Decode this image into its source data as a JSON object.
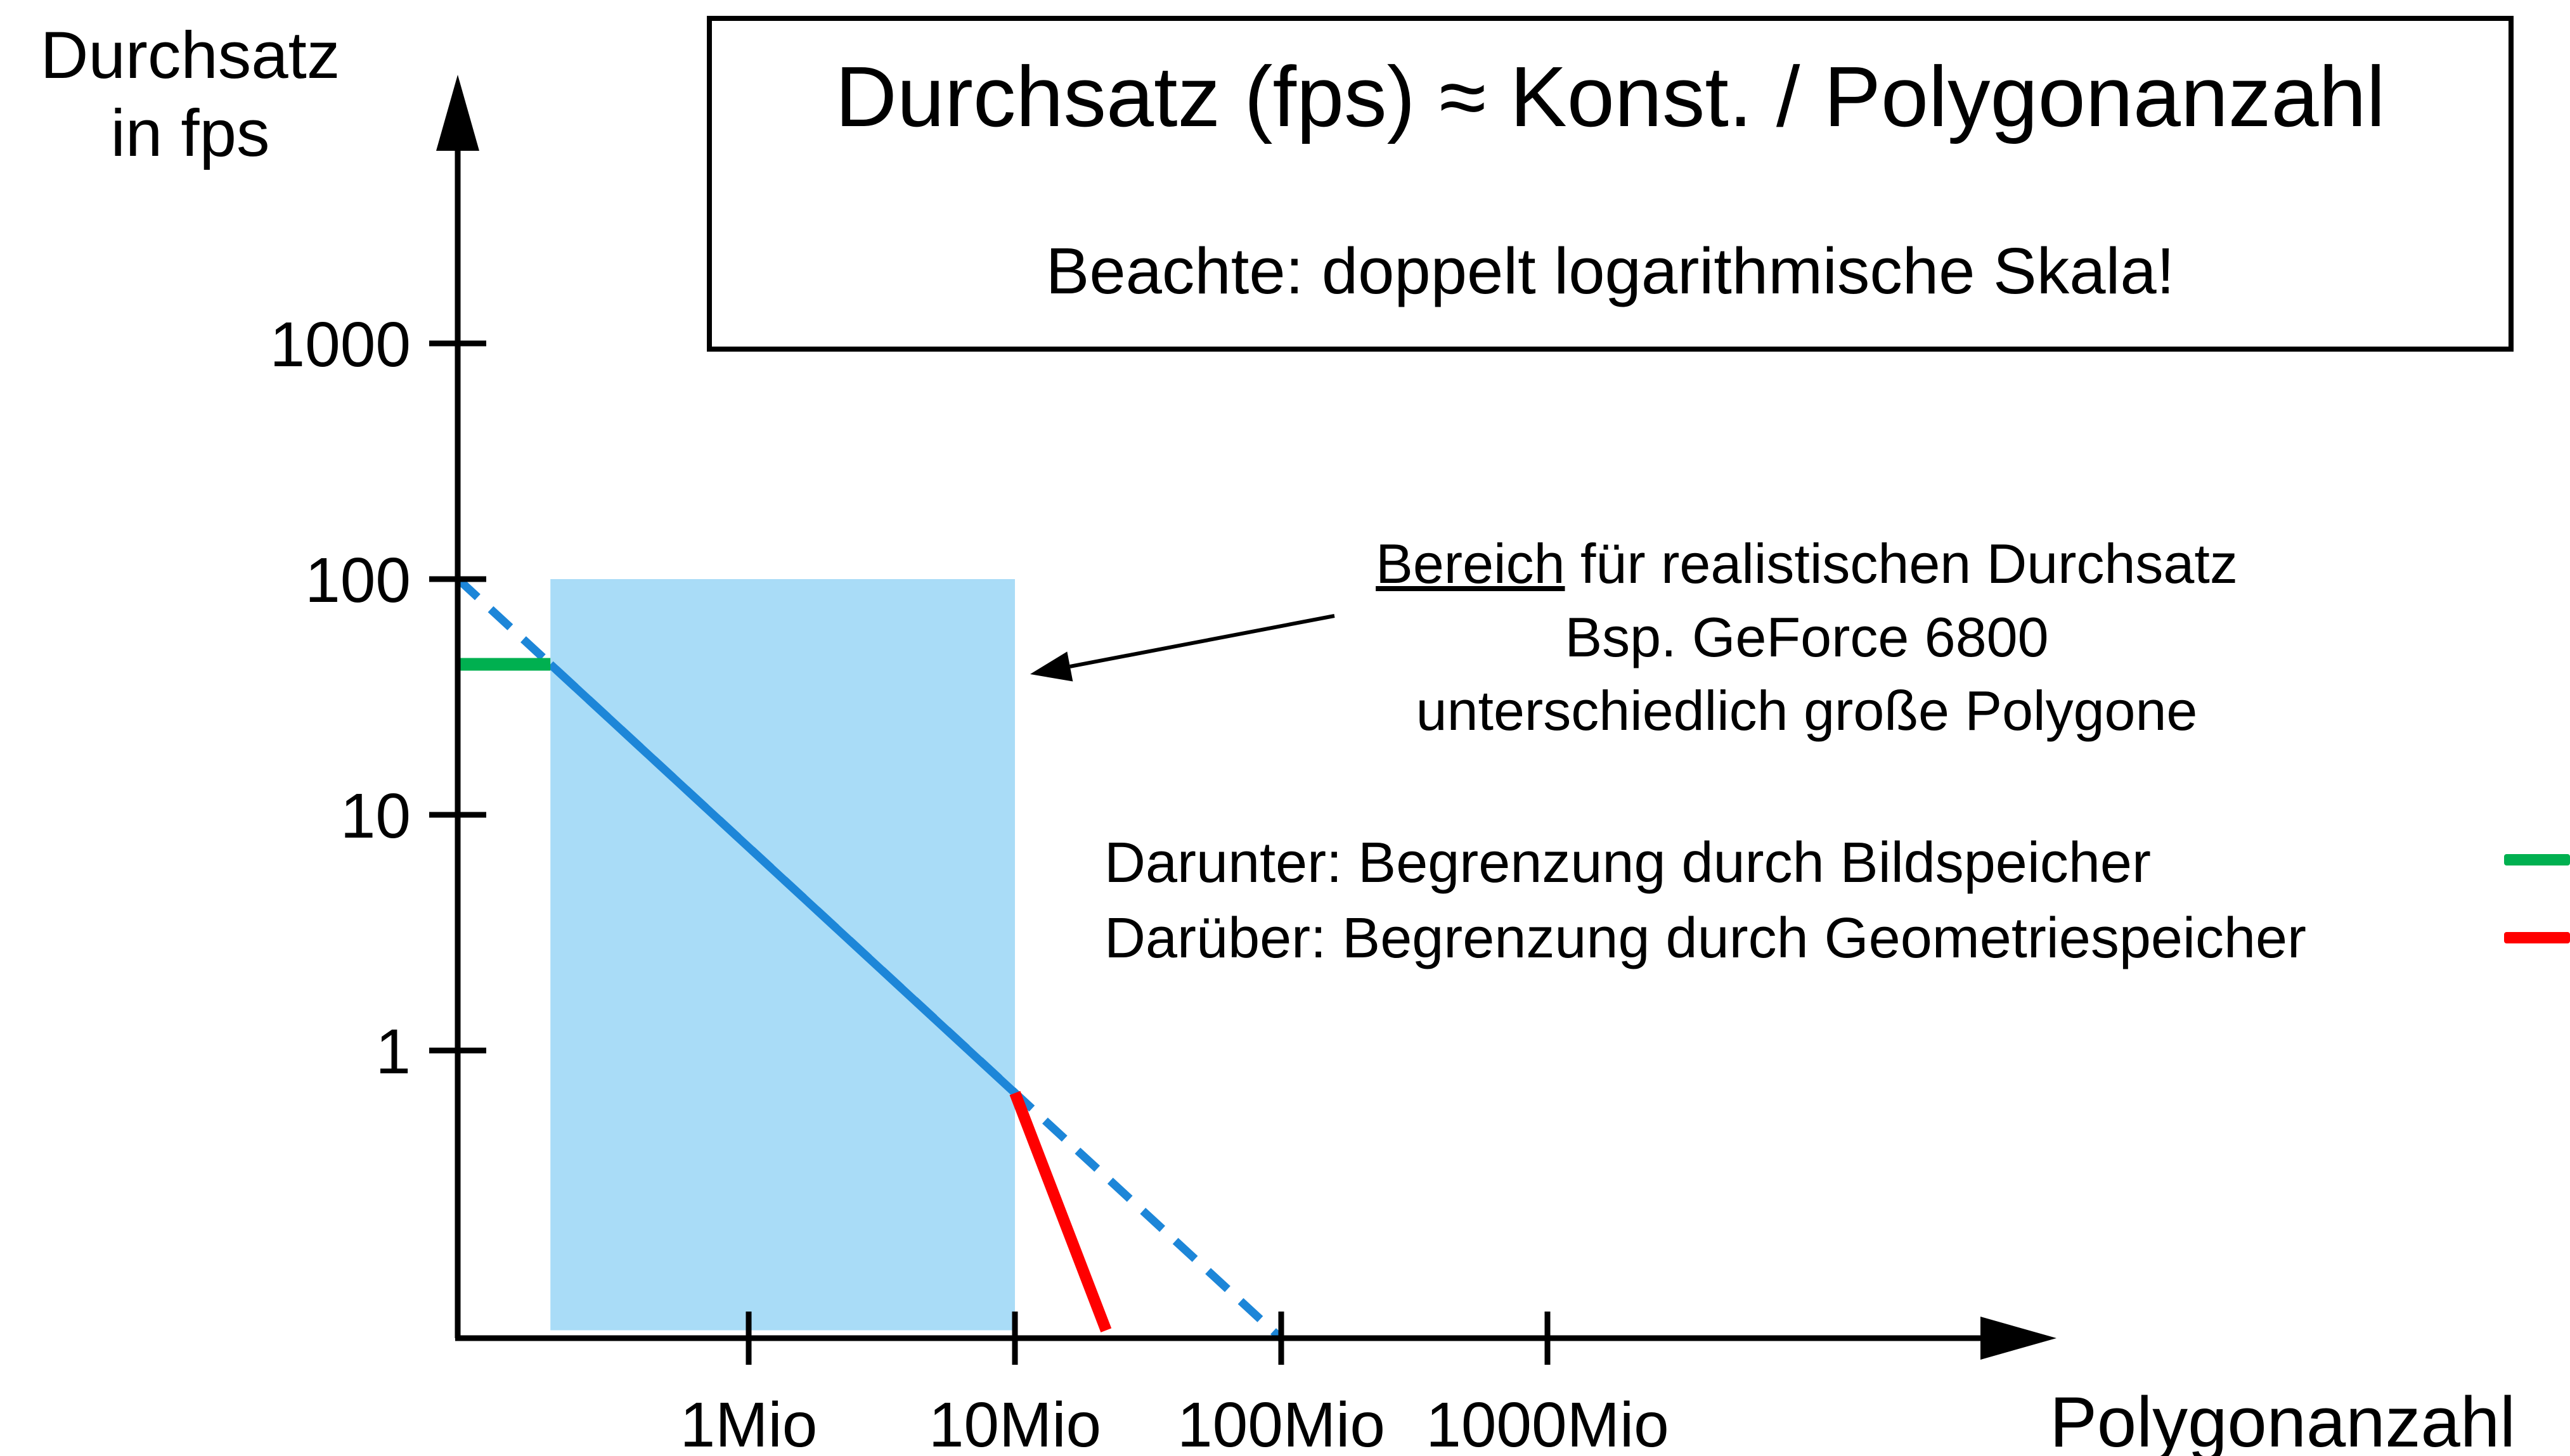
{
  "header": {
    "title": "Durchsatz (fps)  ≈ Konst. / Polygonanzahl",
    "note": "Beachte: doppelt logarithmische Skala!"
  },
  "axes": {
    "y_label_line1": "Durchsatz",
    "y_label_line2": "in fps",
    "x_label": "Polygonanzahl"
  },
  "annotation": {
    "line1_underlined": "Bereich",
    "line1_rest": " für realistischen Durchsatz",
    "line2": "Bsp. GeForce 6800",
    "line3": "unterschiedlich große Polygone"
  },
  "legend": [
    {
      "label": "Darunter: Begrenzung durch Bildspeicher",
      "color": "#00b050",
      "name": "framebuffer-limit"
    },
    {
      "label": "Darüber: Begrenzung durch Geometriespeicher",
      "color": "#ff0000",
      "name": "geometry-limit"
    }
  ],
  "colors": {
    "line_blue": "#1d86d8",
    "region_blue": "#a9dcf7",
    "green": "#00b050",
    "red": "#ff0000",
    "axis": "#000000"
  },
  "chart_data": {
    "type": "line",
    "title": "Durchsatz (fps) ≈ Konst. / Polygonanzahl",
    "subtitle": "Beachte: doppelt logarithmische Skala!",
    "xlabel": "Polygonanzahl",
    "ylabel": "Durchsatz in fps",
    "x_scale": "log",
    "y_scale": "log",
    "x_unit": "Mio Polygone",
    "xlim_mio": [
      0.08,
      1000
    ],
    "ylim_fps": [
      0.06,
      1000
    ],
    "grid": false,
    "x_ticks": [
      {
        "label": "1Mio",
        "value": 1
      },
      {
        "label": "10Mio",
        "value": 10
      },
      {
        "label": "100Mio",
        "value": 100
      },
      {
        "label": "1000Mio",
        "value": 1000
      }
    ],
    "y_ticks": [
      {
        "label": "1000",
        "value": 1000
      },
      {
        "label": "100",
        "value": 100
      },
      {
        "label": "10",
        "value": 10
      },
      {
        "label": "1",
        "value": 1
      }
    ],
    "series": [
      {
        "name": "ideal-throughput",
        "style": "dashed",
        "color": "#1d86d8",
        "points": [
          [
            0.081,
            100
          ],
          [
            100,
            0.06
          ]
        ]
      },
      {
        "name": "realistic-throughput",
        "style": "solid",
        "color": "#1d86d8",
        "points": [
          [
            0.18,
            43.5
          ],
          [
            10,
            0.66
          ]
        ]
      },
      {
        "name": "framebuffer-limit",
        "style": "solid",
        "color": "#00b050",
        "points": [
          [
            0.081,
            43.5
          ],
          [
            0.18,
            43.5
          ]
        ]
      },
      {
        "name": "geometry-limit",
        "style": "solid",
        "color": "#ff0000",
        "points": [
          [
            10,
            0.66
          ],
          [
            22,
            0.065
          ]
        ]
      }
    ],
    "highlight_region": {
      "x_mio": [
        0.18,
        10
      ],
      "y_fps": [
        0.065,
        100
      ],
      "color": "#a9dcf7",
      "label": "Bereich für realistischen Durchsatz, Bsp. GeForce 6800, unterschiedlich große Polygone"
    },
    "annotations": [
      "Bereich für realistischen Durchsatz",
      "Bsp. GeForce 6800",
      "unterschiedlich große Polygone",
      "Darunter: Begrenzung durch Bildspeicher",
      "Darüber: Begrenzung durch Geometriespeicher"
    ],
    "legend_position": "right"
  }
}
